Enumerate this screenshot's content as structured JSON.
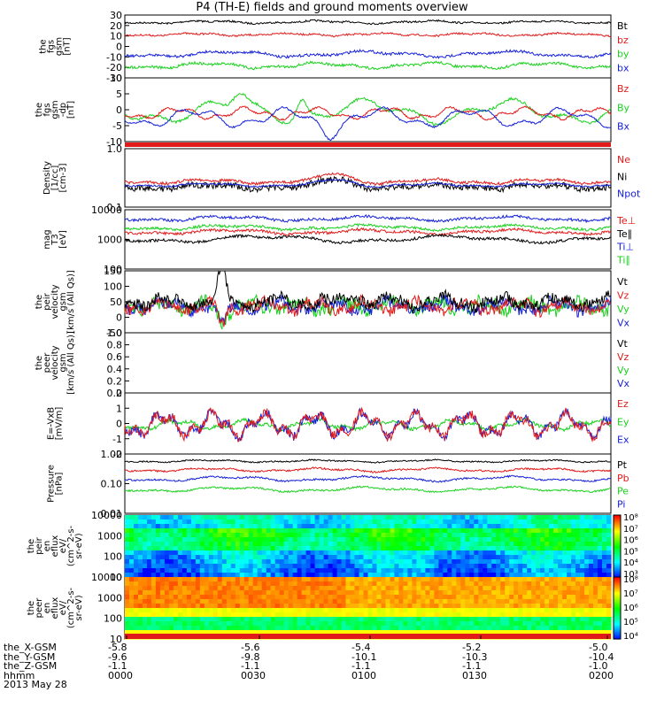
{
  "title": "P4 (TH-E) fields and ground moments overview",
  "colors": {
    "black": "#000000",
    "red": "#e11a1a",
    "green": "#19d11d",
    "blue": "#1521d8"
  },
  "panels": [
    {
      "id": "fgs-gsm",
      "ylabel": [
        "the",
        "fgs",
        "gsm",
        "[nT]"
      ],
      "scale": "linear",
      "ylim": [
        -33,
        33
      ],
      "ticks": [
        "30",
        "20",
        "10",
        "0",
        "-10",
        "-20",
        "-30"
      ],
      "legend": [
        {
          "label": "Bt",
          "color": "black"
        },
        {
          "label": "bz",
          "color": "red"
        },
        {
          "label": "by",
          "color": "green"
        },
        {
          "label": "bx",
          "color": "blue"
        }
      ]
    },
    {
      "id": "fgs-gsm-dc",
      "ylabel": [
        "the",
        "fgs",
        "gsm",
        "-dp",
        "[nT]"
      ],
      "scale": "linear",
      "ylim": [
        -15,
        10
      ],
      "ticks": [
        "10",
        "5",
        "0",
        "-5",
        "-10"
      ],
      "legend": [
        {
          "label": "Bz",
          "color": "red"
        },
        {
          "label": "By",
          "color": "green"
        },
        {
          "label": "Bx",
          "color": "blue"
        }
      ]
    },
    {
      "id": "density",
      "ylabel": [
        "Density",
        "[1/cc]",
        "[cm-3]"
      ],
      "scale": "log",
      "ylim": [
        0.1,
        1.5
      ],
      "ticks": [
        "1.0",
        "0.1"
      ],
      "legend": [
        {
          "label": "Ne",
          "color": "red"
        },
        {
          "label": "Ni",
          "color": "black"
        },
        {
          "label": "Npot",
          "color": "blue"
        }
      ]
    },
    {
      "id": "temperature",
      "ylabel": [
        "mag",
        "T3",
        "[eV]"
      ],
      "scale": "log",
      "ylim": [
        100,
        15000
      ],
      "ticks": [
        "10000",
        "1000",
        "100"
      ],
      "legend": [
        {
          "label": "Te⊥",
          "color": "red"
        },
        {
          "label": "Te∥",
          "color": "black"
        },
        {
          "label": "Ti⊥",
          "color": "blue"
        },
        {
          "label": "Ti∥",
          "color": "green"
        }
      ]
    },
    {
      "id": "peir-velocity",
      "ylabel": [
        "the",
        "peir",
        "velocity",
        "gsm",
        "[km/s (All Qs)]"
      ],
      "scale": "linear",
      "ylim": [
        -60,
        160
      ],
      "ticks": [
        "150",
        "100",
        "50",
        "0",
        "-50"
      ],
      "legend": [
        {
          "label": "Vt",
          "color": "black"
        },
        {
          "label": "Vz",
          "color": "red"
        },
        {
          "label": "Vy",
          "color": "green"
        },
        {
          "label": "Vx",
          "color": "blue"
        }
      ]
    },
    {
      "id": "peer-velocity",
      "ylabel": [
        "the",
        "peer",
        "velocity",
        "gsm",
        "[km/s (All Qs)]"
      ],
      "scale": "linear",
      "ylim": [
        0,
        1
      ],
      "ticks": [
        "1.0",
        "0.8",
        "0.6",
        "0.4",
        "0.2",
        "0.0"
      ],
      "legend": [
        {
          "label": "Vt",
          "color": "black"
        },
        {
          "label": "Vz",
          "color": "red"
        },
        {
          "label": "Vy",
          "color": "green"
        },
        {
          "label": "Vx",
          "color": "blue"
        }
      ]
    },
    {
      "id": "efield",
      "ylabel": [
        "E=-VxB",
        "[mV/m]"
      ],
      "scale": "linear",
      "ylim": [
        -2.2,
        2.4
      ],
      "ticks": [
        "2",
        "1",
        "0",
        "-1",
        "-2"
      ],
      "legend": [
        {
          "label": "Ez",
          "color": "red"
        },
        {
          "label": "Ey",
          "color": "green"
        },
        {
          "label": "Ex",
          "color": "blue"
        }
      ]
    },
    {
      "id": "pressure",
      "ylabel": [
        "Pressure",
        "[nPa]"
      ],
      "scale": "log",
      "ylim": [
        0.01,
        1.3
      ],
      "ticks": [
        "1.00",
        "0.10",
        "0.01"
      ],
      "legend": [
        {
          "label": "Pt",
          "color": "black"
        },
        {
          "label": "Pb",
          "color": "red"
        },
        {
          "label": "Pe",
          "color": "green"
        },
        {
          "label": "Pi",
          "color": "blue"
        }
      ]
    },
    {
      "id": "peir-eflux",
      "ylabel": [
        "the",
        "peir",
        "en",
        "eflux",
        "eV/",
        "(cm^2-s-",
        "sr-eV)"
      ],
      "scale": "spectrogram",
      "ticks": [
        "10000",
        "1000",
        "100",
        "10"
      ],
      "colorbar": [
        "10⁸",
        "10⁷",
        "10⁶",
        "10⁵",
        "10⁴",
        "10³"
      ]
    },
    {
      "id": "peer-eflux",
      "ylabel": [
        "the",
        "peer",
        "en",
        "eflux",
        "eV/",
        "(cm^2-s-",
        "sr-eV)"
      ],
      "scale": "spectrogram",
      "ticks": [
        "10000",
        "1000",
        "100",
        "10"
      ],
      "colorbar": [
        "10⁸",
        "10⁷",
        "10⁶",
        "10⁵",
        "10⁴"
      ]
    }
  ],
  "xaxis": {
    "rows": [
      {
        "label": "the_X-GSM",
        "values": [
          "-5.8",
          "-5.6",
          "-5.4",
          "-5.2",
          "-5.0"
        ]
      },
      {
        "label": "the_Y-GSM",
        "values": [
          "-9.6",
          "-9.8",
          "-10.1",
          "-10.3",
          "-10.4"
        ]
      },
      {
        "label": "the_Z-GSM",
        "values": [
          "-1.1",
          "-1.1",
          "-1.1",
          "-1.1",
          "-1.0"
        ]
      },
      {
        "label": "hhmm",
        "values": [
          "0000",
          "0030",
          "0100",
          "0130",
          "0200"
        ]
      }
    ],
    "date": "2013 May 28"
  },
  "chart_data": {
    "type": "line",
    "title": "P4 (TH-E) fields and ground moments overview",
    "x_time_labels": [
      "0000",
      "0030",
      "0100",
      "0130",
      "0200"
    ],
    "series": [
      {
        "panel": "fgs-gsm",
        "name": "Bt",
        "values": [
          27,
          28,
          30,
          27,
          29,
          26,
          28,
          27
        ]
      },
      {
        "panel": "fgs-gsm",
        "name": "bz",
        "values": [
          12,
          13,
          12,
          10,
          13,
          11,
          12,
          11
        ]
      },
      {
        "panel": "fgs-gsm",
        "name": "by",
        "values": [
          -19,
          -17,
          -15,
          -21,
          -18,
          -20,
          -17,
          -16
        ]
      },
      {
        "panel": "fgs-gsm",
        "name": "bx",
        "values": [
          -10,
          -8,
          -12,
          -6,
          -9,
          -11,
          -9,
          -10
        ]
      },
      {
        "panel": "density",
        "name": "Ne",
        "values": [
          0.24,
          0.21,
          0.26,
          0.34,
          0.23,
          0.22,
          0.24,
          0.22
        ]
      },
      {
        "panel": "density",
        "name": "Ni",
        "values": [
          0.19,
          0.18,
          0.2,
          0.31,
          0.18,
          0.17,
          0.2,
          0.18
        ]
      },
      {
        "panel": "temperature",
        "name": "Te⊥",
        "values": [
          3400,
          3300,
          3100,
          2500,
          3300,
          3200,
          3400,
          3300
        ]
      },
      {
        "panel": "temperature",
        "name": "Te∥",
        "values": [
          1900,
          2000,
          2100,
          1700,
          2300,
          2200,
          2400,
          2600
        ]
      },
      {
        "panel": "temperature",
        "name": "Ti⊥",
        "values": [
          7200,
          6800,
          6400,
          5200,
          6300,
          6000,
          6500,
          6200
        ]
      },
      {
        "panel": "temperature",
        "name": "Ti∥",
        "values": [
          4200,
          4000,
          3600,
          3000,
          3800,
          3500,
          3700,
          3300
        ]
      },
      {
        "panel": "pressure",
        "name": "Pt",
        "values": [
          0.55,
          0.56,
          0.58,
          0.5,
          0.55,
          0.54,
          0.56,
          0.55
        ]
      },
      {
        "panel": "pressure",
        "name": "Pb",
        "values": [
          0.3,
          0.32,
          0.33,
          0.25,
          0.31,
          0.3,
          0.32,
          0.31
        ]
      },
      {
        "panel": "pressure",
        "name": "Pe",
        "values": [
          0.065,
          0.06,
          0.06,
          0.075,
          0.055,
          0.052,
          0.055,
          0.05
        ]
      },
      {
        "panel": "pressure",
        "name": "Pi",
        "values": [
          0.2,
          0.19,
          0.21,
          0.24,
          0.2,
          0.19,
          0.2,
          0.19
        ]
      }
    ]
  }
}
